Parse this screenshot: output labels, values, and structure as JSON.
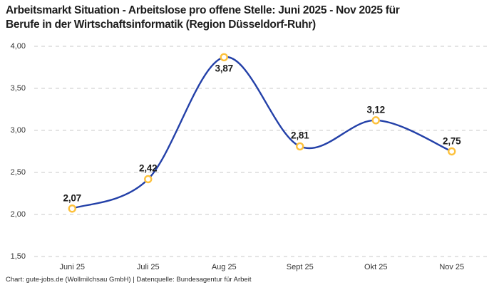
{
  "header": {
    "title_lines": [
      "Arbeitsmarkt Situation - Arbeitslose pro offene Stelle: Juni 2025 - Nov 2025 für",
      "Berufe in der Wirtschaftsinformatik (Region Düsseldorf-Ruhr)"
    ]
  },
  "footer": {
    "credit": "Chart: gute-jobs.de (Wollmilchsau GmbH) | Datenquelle: Bundesagentur für Arbeit"
  },
  "chart_data": {
    "type": "line",
    "title": "Arbeitsmarkt Situation - Arbeitslose pro offene Stelle: Juni 2025 - Nov 2025 für Berufe in der Wirtschaftsinformatik (Region Düsseldorf-Ruhr)",
    "categories": [
      "Juni 25",
      "Juli 25",
      "Aug 25",
      "Sept 25",
      "Okt 25",
      "Nov 25"
    ],
    "series": [
      {
        "name": "Arbeitslose pro offene Stelle",
        "values": [
          2.07,
          2.42,
          3.87,
          2.81,
          3.12,
          2.75
        ],
        "value_labels": [
          "2,07",
          "2,42",
          "3,87",
          "2,81",
          "3,12",
          "2,75"
        ],
        "label_side": [
          "above",
          "above",
          "below",
          "above",
          "above",
          "above"
        ]
      }
    ],
    "xlabel": "",
    "ylabel": "",
    "ylim": [
      1.5,
      4.0
    ],
    "yticks": [
      {
        "value": 4.0,
        "label": "4,00"
      },
      {
        "value": 3.5,
        "label": "3,50"
      },
      {
        "value": 3.0,
        "label": "3,00"
      },
      {
        "value": 2.5,
        "label": "2,50"
      },
      {
        "value": 2.0,
        "label": "2,00"
      },
      {
        "value": 1.5,
        "label": "1,50"
      }
    ],
    "grid": "dashed-horizontal",
    "legend": "none",
    "curve": "smooth-spline",
    "colors": {
      "line": "#2340a8",
      "marker_ring": "#fdc13c",
      "marker_fill": "#ffffff",
      "gridline": "#c9c9c9",
      "tick_text": "#333333",
      "data_label_text": "#1a1a1a",
      "title_text": "#1d1d1d"
    }
  }
}
